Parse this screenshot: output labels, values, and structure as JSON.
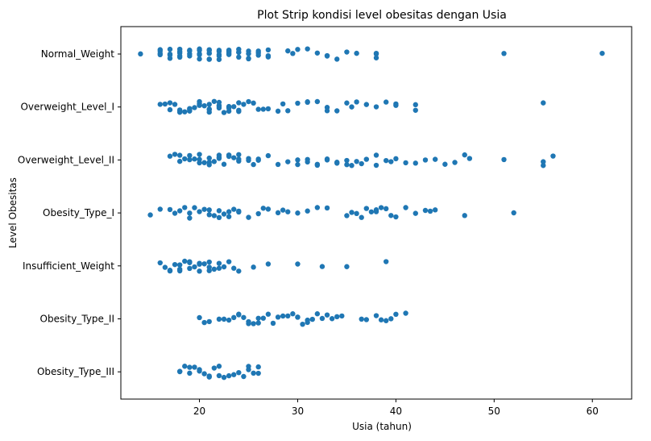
{
  "chart_data": {
    "type": "scatter",
    "subtype": "strip",
    "title": "Plot Strip kondisi level obesitas dengan Usia",
    "xlabel": "Usia (tahun)",
    "ylabel": "Level Obesitas",
    "xlim": [
      12,
      64
    ],
    "x_ticks": [
      20,
      30,
      40,
      50,
      60
    ],
    "grid": false,
    "legend": "none",
    "point_color": "#1f77b4",
    "categories": [
      "Normal_Weight",
      "Overweight_Level_I",
      "Overweight_Level_II",
      "Obesity_Type_I",
      "Insufficient_Weight",
      "Obesity_Type_II",
      "Obesity_Type_III"
    ],
    "series": [
      {
        "category": "Normal_Weight",
        "values": [
          14,
          16,
          16,
          16,
          16,
          17,
          17,
          17,
          17,
          18,
          18,
          18,
          18,
          18,
          19,
          19,
          19,
          19,
          20,
          20,
          20,
          20,
          20,
          21,
          21,
          21,
          21,
          21,
          21,
          22,
          22,
          22,
          22,
          22,
          23,
          23,
          23,
          23,
          23,
          24,
          24,
          24,
          24,
          25,
          25,
          25,
          25,
          26,
          26,
          26,
          27,
          27,
          27,
          29,
          29.5,
          30,
          31,
          32,
          33,
          33,
          34,
          35,
          36,
          38,
          38,
          38,
          51,
          61
        ]
      },
      {
        "category": "Overweight_Level_I",
        "values": [
          16,
          16.5,
          17,
          17,
          17.5,
          18,
          18,
          18,
          18.5,
          19,
          19,
          19,
          19.5,
          20,
          20,
          20,
          20,
          20.5,
          21,
          21,
          21,
          21,
          21.5,
          22,
          22,
          22,
          22,
          22.5,
          23,
          23,
          23,
          23.5,
          24,
          24,
          24,
          24.5,
          25,
          25.5,
          26,
          26.5,
          27,
          28,
          28.5,
          29,
          30,
          31,
          31,
          32,
          33,
          33,
          34,
          35,
          35.5,
          36,
          37,
          38,
          39,
          40,
          40,
          42,
          42,
          55
        ]
      },
      {
        "category": "Overweight_Level_II",
        "values": [
          17,
          17.5,
          18,
          18,
          18.5,
          19,
          19,
          19.5,
          20,
          20,
          20,
          20.5,
          21,
          21,
          21,
          21.5,
          22,
          22,
          22,
          22.5,
          23,
          23,
          23,
          23.5,
          24,
          24,
          24,
          25,
          25,
          25.5,
          26,
          26,
          27,
          28,
          29,
          30,
          30,
          31,
          31,
          32,
          32,
          33,
          33,
          34,
          34,
          35,
          35,
          35.5,
          36,
          36.5,
          37,
          38,
          38,
          39,
          39.5,
          40,
          41,
          42,
          43,
          44,
          45,
          46,
          47,
          47.5,
          51,
          55,
          55,
          56
        ]
      },
      {
        "category": "Obesity_Type_I",
        "values": [
          15,
          16,
          17,
          17.5,
          18,
          18.5,
          19,
          19,
          19.5,
          20,
          20.5,
          21,
          21,
          21.5,
          22,
          22,
          22.5,
          23,
          23,
          23.5,
          24,
          24,
          25,
          26,
          26.5,
          27,
          28,
          28.5,
          29,
          30,
          31,
          32,
          33,
          35,
          35.5,
          36,
          36.5,
          37,
          37.5,
          38,
          38,
          38.5,
          39,
          39.5,
          40,
          41,
          42,
          43,
          43.5,
          44,
          47,
          52
        ]
      },
      {
        "category": "Insufficient_Weight",
        "values": [
          16,
          16.5,
          17,
          17,
          17.5,
          18,
          18,
          18,
          18.5,
          19,
          19,
          19,
          19.5,
          20,
          20,
          20,
          20.5,
          21,
          21,
          21,
          21.5,
          22,
          22,
          22.5,
          23,
          23.5,
          24,
          25.5,
          27,
          30,
          32.5,
          35,
          39
        ]
      },
      {
        "category": "Obesity_Type_II",
        "values": [
          20,
          20.5,
          21,
          22,
          22.5,
          23,
          23.5,
          24,
          24,
          24.5,
          25,
          25,
          25.5,
          26,
          26,
          26.5,
          27,
          27.5,
          28,
          28.5,
          29,
          29.5,
          30,
          30,
          30.5,
          31,
          31,
          31.5,
          32,
          32.5,
          33,
          33.5,
          34,
          34.5,
          36.5,
          37,
          38,
          38.5,
          39,
          39.5,
          40,
          41
        ]
      },
      {
        "category": "Obesity_Type_III",
        "values": [
          18,
          18,
          18.5,
          19,
          19,
          19.5,
          20,
          20,
          20.5,
          21,
          21,
          21.5,
          22,
          22,
          22.5,
          23,
          23.5,
          24,
          24.5,
          25,
          25,
          25.5,
          26,
          26
        ]
      }
    ]
  }
}
